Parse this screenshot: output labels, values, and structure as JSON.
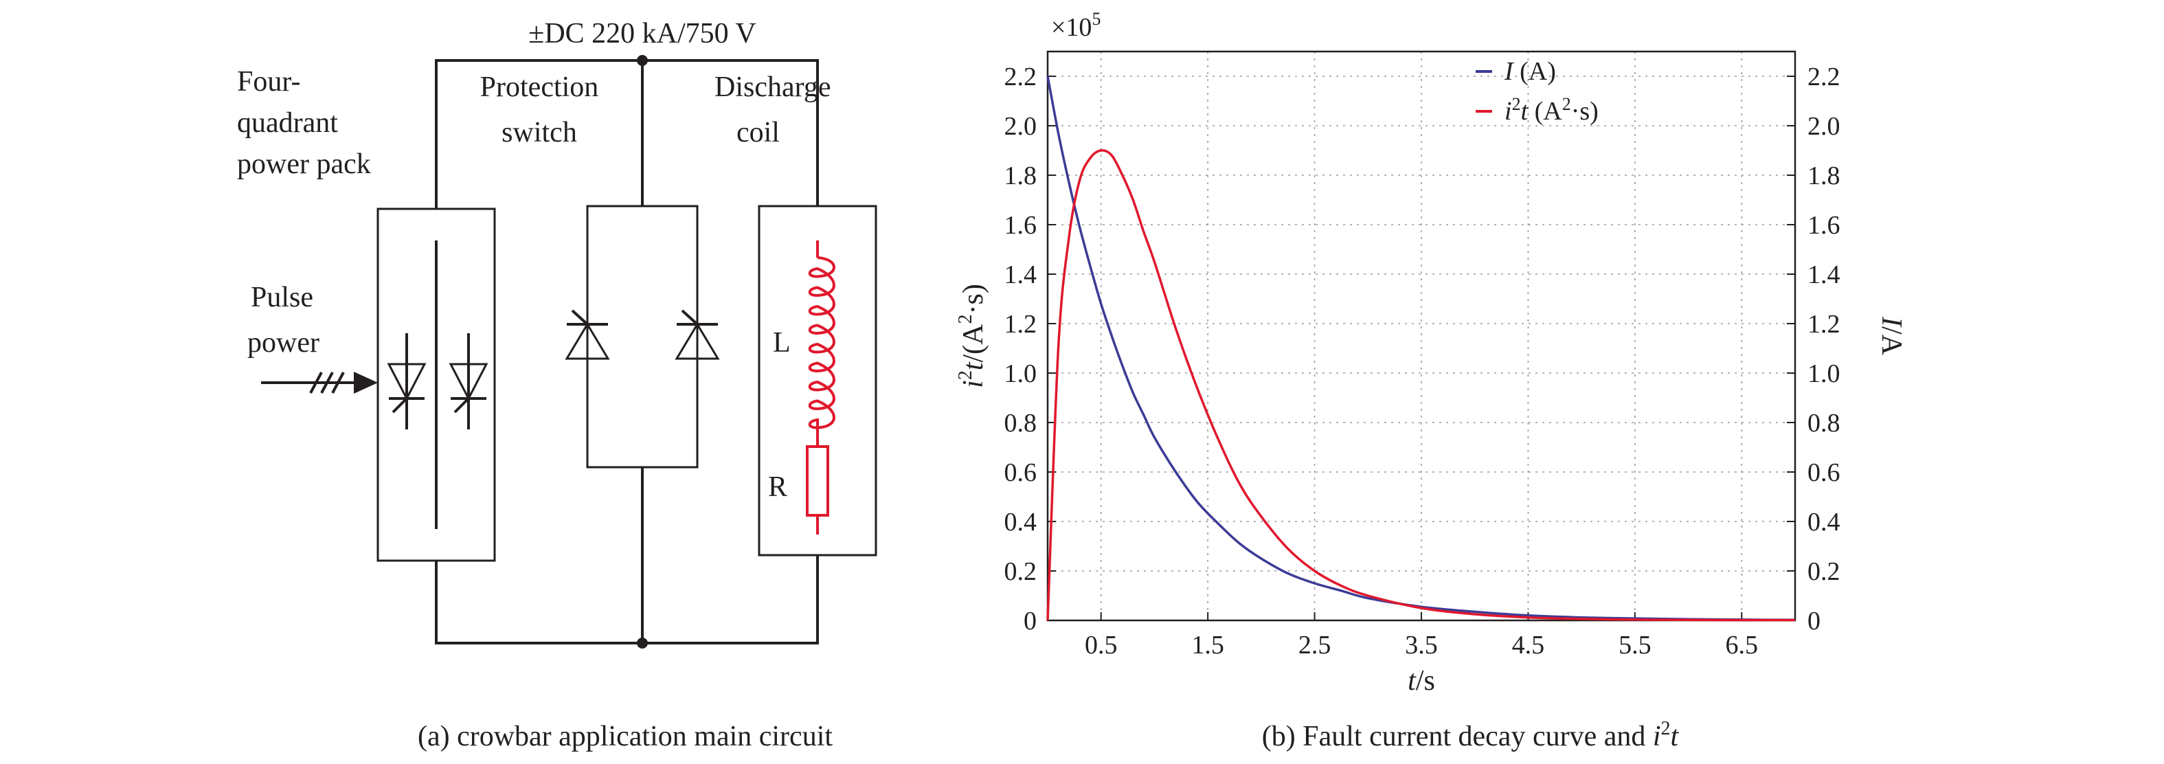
{
  "circuit": {
    "supply_label": "±DC 220 kA/750 V",
    "power_pack_label": [
      "Four-",
      "quadrant",
      "power pack"
    ],
    "switch_label": [
      "Protection",
      "switch"
    ],
    "coil_label": [
      "Discharge",
      "coil"
    ],
    "pulse_label": [
      "Pulse",
      "power"
    ],
    "inductor_label": "L",
    "resistor_label": "R",
    "caption": "(a) crowbar application main circuit"
  },
  "chart": {
    "caption_prefix": "(b) Fault current decay curve and ",
    "caption_var": "i",
    "caption_sup": "2",
    "caption_var2": "t",
    "multiplier_base": "×10",
    "multiplier_exp": "5",
    "xlabel_var": "t",
    "xlabel_unit": "/s",
    "ylabel_left": {
      "var": "i",
      "sup": "2",
      "var2": "t",
      "unit": "/(A",
      "unit_sup": "2",
      "unit_end": "·s)"
    },
    "ylabel_right": {
      "var": "I",
      "unit": "/A"
    },
    "legend": [
      {
        "var": "I",
        "sup": "",
        "var2": "",
        "unit": " (A)",
        "unit_sup": "",
        "unit_end": "",
        "color": "#3c3c96"
      },
      {
        "var": "i",
        "sup": "2",
        "var2": "t",
        "unit": " (A",
        "unit_sup": "2",
        "unit_end": "·s)",
        "color": "#e0182d"
      }
    ],
    "x_ticks": [
      "0.5",
      "1.5",
      "2.5",
      "3.5",
      "4.5",
      "5.5",
      "6.5"
    ],
    "y_ticks": [
      "0",
      "0.2",
      "0.4",
      "0.6",
      "0.8",
      "1.0",
      "1.2",
      "1.4",
      "1.6",
      "1.8",
      "2.0",
      "2.2"
    ],
    "y2_ticks": [
      "0",
      "0.2",
      "0.4",
      "0.6",
      "0.8",
      "1.0",
      "1.2",
      "1.4",
      "1.6",
      "1.8",
      "2.0",
      "2.2"
    ]
  },
  "chart_data": {
    "type": "line",
    "xlabel": "t/s",
    "ylabel": "i²t/(A²·s)",
    "y2label": "I/A",
    "y_multiplier": "×10^5",
    "xlim": [
      0,
      7
    ],
    "ylim": [
      0,
      2.3
    ],
    "y2lim": [
      0,
      2.3
    ],
    "grid": true,
    "legend_position": "top-right",
    "x": [
      0,
      0.1,
      0.2,
      0.3,
      0.4,
      0.5,
      0.6,
      0.7,
      0.8,
      0.9,
      1.0,
      1.2,
      1.4,
      1.6,
      1.8,
      2.0,
      2.25,
      2.5,
      2.75,
      3.0,
      3.5,
      4.0,
      4.5,
      5.0,
      5.5,
      6.0,
      6.5,
      7.0
    ],
    "series": [
      {
        "name": "I (A)",
        "axis": "right",
        "color": "#3c3c96",
        "values": [
          2.2,
          1.97,
          1.77,
          1.59,
          1.43,
          1.28,
          1.15,
          1.03,
          0.92,
          0.83,
          0.74,
          0.6,
          0.48,
          0.39,
          0.31,
          0.25,
          0.19,
          0.15,
          0.12,
          0.09,
          0.055,
          0.035,
          0.02,
          0.012,
          0.008,
          0.005,
          0.003,
          0.002
        ]
      },
      {
        "name": "i²t (A²·s)",
        "axis": "left",
        "color": "#e0182d",
        "values": [
          0,
          1.1,
          1.55,
          1.78,
          1.87,
          1.9,
          1.88,
          1.8,
          1.7,
          1.57,
          1.45,
          1.18,
          0.94,
          0.73,
          0.55,
          0.42,
          0.29,
          0.2,
          0.14,
          0.1,
          0.05,
          0.025,
          0.012,
          0.006,
          0.003,
          0.002,
          0.001,
          0.001
        ]
      }
    ]
  },
  "colors": {
    "ink": "#231f20",
    "coil": "#e0182d",
    "line_I": "#3c3c96",
    "line_i2t": "#e0182d",
    "grid": "#9a9a9a"
  }
}
